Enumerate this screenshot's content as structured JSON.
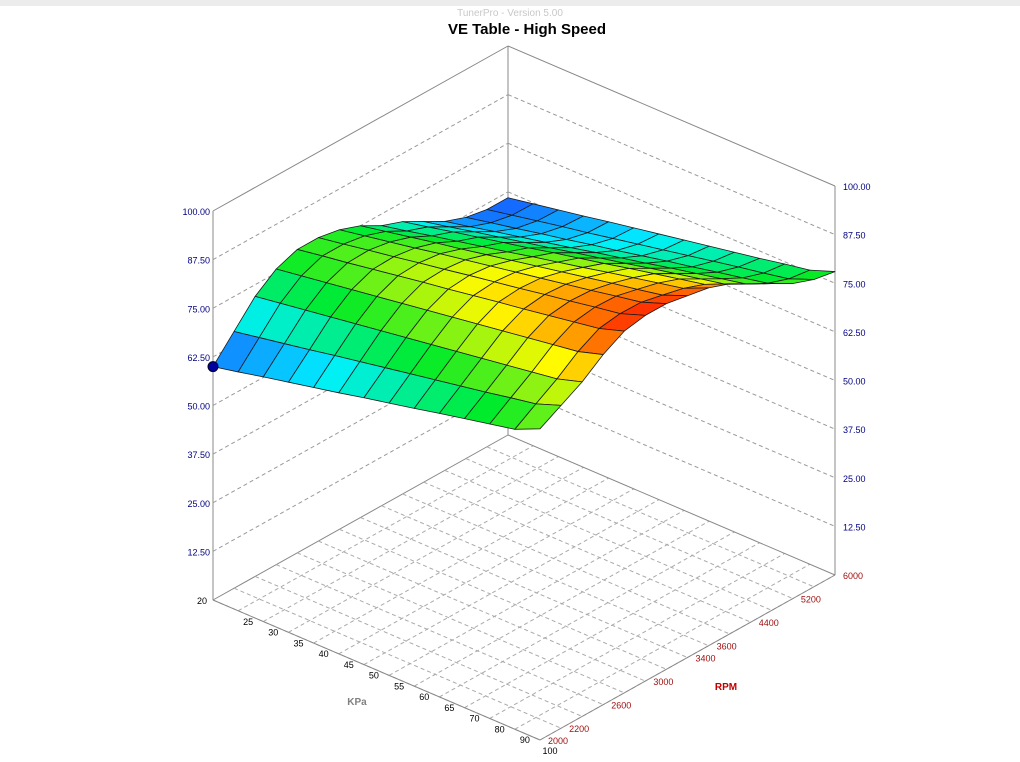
{
  "app_title": "TunerPro - Version 5.00",
  "chart_data": {
    "type": "surface3d",
    "title": "VE Table - High Speed",
    "xlabel": "KPa",
    "ylabel": "RPM",
    "zlim": [
      0,
      100
    ],
    "z_ticks": [
      "12.50",
      "25.00",
      "37.50",
      "50.00",
      "62.50",
      "75.00",
      "87.50",
      "100.00"
    ],
    "z_tick_values": [
      12.5,
      25,
      37.5,
      50,
      62.5,
      75,
      87.5,
      100
    ],
    "kpa": [
      20,
      25,
      30,
      35,
      40,
      45,
      50,
      55,
      60,
      65,
      70,
      80,
      90,
      100
    ],
    "kpa_ticks": [
      "20",
      "25",
      "30",
      "35",
      "40",
      "45",
      "50",
      "55",
      "60",
      "65",
      "70",
      "80",
      "90",
      "100"
    ],
    "rpm": [
      2000,
      2200,
      2400,
      2600,
      2800,
      3000,
      3200,
      3400,
      3600,
      4000,
      4400,
      4800,
      5200,
      5600,
      6000
    ],
    "rpm_ticks": [
      {
        "label": "2000",
        "index": 0
      },
      {
        "label": "2200",
        "index": 1
      },
      {
        "label": "2600",
        "index": 3
      },
      {
        "label": "3000",
        "index": 5
      },
      {
        "label": "3400",
        "index": 7
      },
      {
        "label": "3600",
        "index": 8
      },
      {
        "label": "4400",
        "index": 10
      },
      {
        "label": "5200",
        "index": 12
      },
      {
        "label": "6000",
        "index": 14
      }
    ],
    "selected_cell": {
      "kpa": 20,
      "rpm": 2000
    },
    "values": [
      [
        60,
        66,
        72,
        76,
        78,
        78,
        77,
        75,
        72,
        70,
        67,
        64,
        62,
        61,
        61
      ],
      [
        61.4,
        67.2,
        73,
        77,
        79.1,
        79.1,
        78.2,
        76.3,
        73.4,
        71.4,
        68.4,
        65.4,
        63.4,
        62.3,
        62.2
      ],
      [
        62.9,
        68.4,
        74,
        78,
        80.1,
        80.3,
        79.4,
        77.6,
        74.9,
        72.9,
        69.9,
        66.9,
        64.7,
        63.6,
        63.4
      ],
      [
        64.3,
        69.6,
        75,
        79,
        81.2,
        81.4,
        80.6,
        78.9,
        76.3,
        74.3,
        71.3,
        68.3,
        66.1,
        64.9,
        64.6
      ],
      [
        65.7,
        70.9,
        76,
        80,
        82.3,
        82.6,
        81.9,
        80.1,
        77.7,
        75.7,
        72.7,
        69.7,
        67.4,
        66.1,
        65.9
      ],
      [
        67.1,
        72.1,
        77,
        81,
        83.4,
        83.7,
        83.1,
        81.4,
        79.1,
        77.1,
        74.1,
        71.1,
        68.8,
        67.4,
        67.1
      ],
      [
        68.6,
        73.3,
        78,
        82,
        84.4,
        84.9,
        84.3,
        82.7,
        80.6,
        78.6,
        75.6,
        72.6,
        70.1,
        68.7,
        68.3
      ],
      [
        70,
        74.5,
        79,
        83,
        85.5,
        86,
        85.5,
        84,
        82,
        80,
        77,
        74,
        71.5,
        70,
        69.5
      ],
      [
        71.4,
        75.7,
        80,
        84,
        86.6,
        87.1,
        86.7,
        85.3,
        83.4,
        81.4,
        78.4,
        75.4,
        72.9,
        71.3,
        70.7
      ],
      [
        72.9,
        76.9,
        81,
        85,
        87.6,
        88.3,
        87.9,
        86.6,
        84.9,
        82.9,
        79.9,
        76.9,
        74.2,
        72.6,
        71.9
      ],
      [
        74.3,
        78.1,
        82,
        86,
        88.7,
        89.4,
        89.1,
        87.9,
        86.3,
        84.3,
        81.3,
        78.3,
        75.6,
        73.9,
        73.1
      ],
      [
        75.7,
        79.4,
        83,
        87,
        89.8,
        90.6,
        90.4,
        89.1,
        87.7,
        85.7,
        82.7,
        79.7,
        76.9,
        75.1,
        74.4
      ],
      [
        77.1,
        80.6,
        84,
        88,
        90.9,
        91.7,
        91.6,
        90.4,
        89.1,
        87.1,
        84.1,
        81.1,
        78.3,
        76.4,
        75.6
      ],
      [
        80,
        83,
        86,
        90,
        93,
        94,
        94,
        93,
        92,
        90,
        87,
        84,
        81,
        79,
        78
      ]
    ]
  },
  "colors": {
    "z_tick": "#000080",
    "kpa_tick": "#000000",
    "rpm_tick": "#a01010",
    "kpa_label": "#808080",
    "rpm_label": "#c00000",
    "marker": "#0000a0"
  }
}
